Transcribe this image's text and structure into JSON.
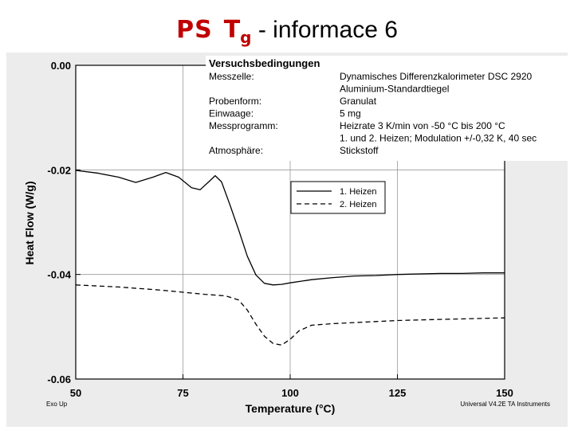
{
  "slide": {
    "title_prefix": "PS",
    "title_symbol": "T",
    "title_subscript": "g",
    "title_suffix": "- informace 6"
  },
  "conditions": {
    "heading": "Versuchsbedingungen",
    "rows": [
      {
        "label": "Messzelle:",
        "value": "Dynamisches Differenzkalorimeter DSC 2920"
      },
      {
        "label": "",
        "value": "Aluminium-Standardtiegel"
      },
      {
        "label": "Probenform:",
        "value": "Granulat"
      },
      {
        "label": "Einwaage:",
        "value": "5 mg"
      },
      {
        "label": "Messprogramm:",
        "value": "Heizrate 3 K/min von -50 °C bis 200 °C"
      },
      {
        "label": "",
        "value": "1. und 2. Heizen; Modulation +/-0,32 K, 40 sec"
      },
      {
        "label": "Atmosphäre:",
        "value": "Stickstoff"
      }
    ]
  },
  "footer": {
    "left": "Exo Up",
    "right": "Universal V4.2E TA Instruments"
  },
  "chart_data": {
    "type": "line",
    "xlabel": "Temperature (°C)",
    "ylabel": "Heat Flow (W/g)",
    "xlim": [
      50,
      150
    ],
    "ylim": [
      -0.06,
      0.0
    ],
    "xticks": [
      50,
      75,
      100,
      125,
      150
    ],
    "xtick_labels": [
      "50",
      "75",
      "100",
      "125",
      "150"
    ],
    "yticks": [
      0.0,
      -0.02,
      -0.04,
      -0.06
    ],
    "ytick_labels": [
      "0.00",
      "-0.02",
      "-0.04",
      "-0.06"
    ],
    "grid": true,
    "legend_position": "upper-right",
    "series": [
      {
        "name": "1. Heizen",
        "style": "solid",
        "color": "#000000",
        "x": [
          50,
          55,
          60,
          64,
          68,
          71,
          74,
          77,
          79,
          81,
          82.5,
          84,
          86,
          88,
          90,
          92,
          94,
          96,
          98,
          100,
          105,
          110,
          115,
          120,
          125,
          130,
          135,
          140,
          145,
          150
        ],
        "y": [
          -0.0201,
          -0.0206,
          -0.0214,
          -0.0224,
          -0.0214,
          -0.0205,
          -0.0214,
          -0.0234,
          -0.0238,
          -0.0223,
          -0.0211,
          -0.0223,
          -0.0268,
          -0.0315,
          -0.0365,
          -0.0401,
          -0.0417,
          -0.042,
          -0.0419,
          -0.0416,
          -0.041,
          -0.0406,
          -0.0403,
          -0.0402,
          -0.04,
          -0.0399,
          -0.0398,
          -0.0398,
          -0.0397,
          -0.0397
        ]
      },
      {
        "name": "2. Heizen",
        "style": "dashed",
        "color": "#000000",
        "x": [
          50,
          55,
          60,
          65,
          70,
          75,
          80,
          85,
          88,
          90,
          92,
          94,
          96,
          98,
          100,
          102,
          105,
          110,
          115,
          120,
          125,
          130,
          135,
          140,
          145,
          150
        ],
        "y": [
          -0.042,
          -0.0422,
          -0.0424,
          -0.0427,
          -0.043,
          -0.0434,
          -0.0438,
          -0.0441,
          -0.0449,
          -0.0468,
          -0.0495,
          -0.0518,
          -0.0532,
          -0.0535,
          -0.0524,
          -0.0508,
          -0.0497,
          -0.0494,
          -0.0492,
          -0.049,
          -0.0488,
          -0.0487,
          -0.0486,
          -0.0485,
          -0.0484,
          -0.0483
        ]
      }
    ]
  }
}
